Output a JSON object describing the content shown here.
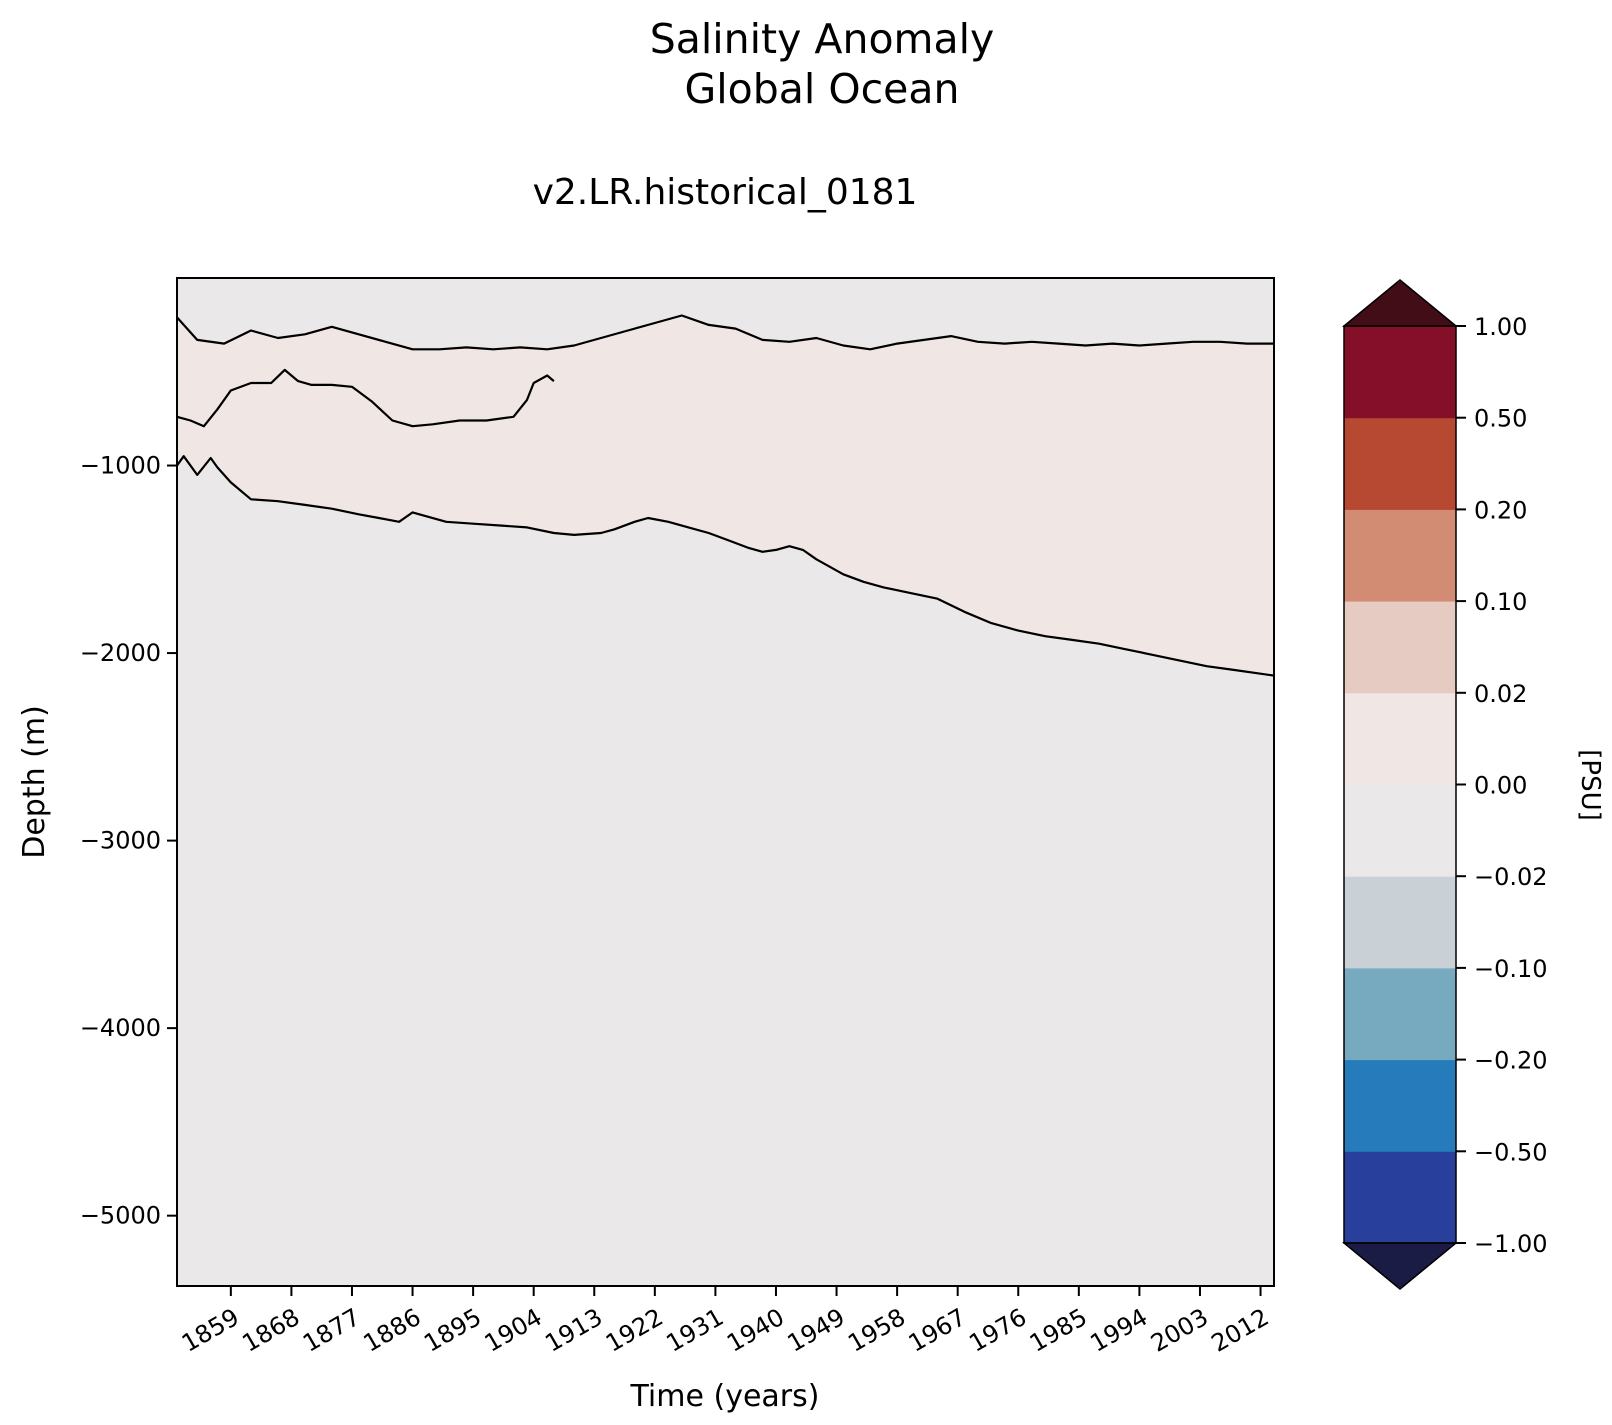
{
  "chart_data": {
    "type": "heatmap",
    "title": "Salinity Anomaly",
    "subtitle": "Global Ocean",
    "panel_title": "v2.LR.historical_0181",
    "xlabel": "Time (years)",
    "ylabel": "Depth (m)",
    "colorbar_label": "[PSU]",
    "x_ticks": [
      1859,
      1868,
      1877,
      1886,
      1895,
      1904,
      1913,
      1922,
      1931,
      1940,
      1949,
      1958,
      1967,
      1976,
      1985,
      1994,
      2003,
      2012
    ],
    "x_tick_labels": [
      "1859",
      "1868",
      "1877",
      "1886",
      "1895",
      "1904",
      "1913",
      "1922",
      "1931",
      "1940",
      "1949",
      "1958",
      "1967",
      "1976",
      "1985",
      "1994",
      "2003",
      "2012"
    ],
    "xlim": [
      1851,
      2014
    ],
    "y_ticks": [
      -1000,
      -2000,
      -3000,
      -4000,
      -5000
    ],
    "y_tick_labels": [
      "−1000",
      "−2000",
      "−3000",
      "−4000",
      "−5000"
    ],
    "ylim": [
      -5375,
      0
    ],
    "levels": [
      -1.0,
      -0.5,
      -0.2,
      -0.1,
      -0.02,
      0.0,
      0.02,
      0.1,
      0.2,
      0.5,
      1.0
    ],
    "level_labels": [
      "−1.00",
      "−0.50",
      "−0.20",
      "−0.10",
      "−0.02",
      "0.00",
      "0.02",
      "0.10",
      "0.20",
      "0.50",
      "1.00"
    ],
    "band_colors": [
      "#283f9c",
      "#267bbb",
      "#77a9bf",
      "#c9d1d7",
      "#eae8e9",
      "#f0e6e4",
      "#e6cbc3",
      "#d18c73",
      "#b74831",
      "#850f28"
    ],
    "extend_low_color": "#1b1c45",
    "extend_high_color": "#420d16",
    "background_color": "#eae8e9",
    "contours": {
      "zero_line_deep": [
        [
          1851,
          -1000
        ],
        [
          1852,
          -950
        ],
        [
          1854,
          -1050
        ],
        [
          1856,
          -960
        ],
        [
          1857,
          -1010
        ],
        [
          1859,
          -1090
        ],
        [
          1862,
          -1180
        ],
        [
          1866,
          -1190
        ],
        [
          1870,
          -1210
        ],
        [
          1874,
          -1230
        ],
        [
          1878,
          -1260
        ],
        [
          1881,
          -1280
        ],
        [
          1884,
          -1300
        ],
        [
          1886,
          -1250
        ],
        [
          1888,
          -1270
        ],
        [
          1891,
          -1300
        ],
        [
          1895,
          -1310
        ],
        [
          1899,
          -1320
        ],
        [
          1903,
          -1330
        ],
        [
          1907,
          -1360
        ],
        [
          1910,
          -1370
        ],
        [
          1914,
          -1360
        ],
        [
          1916,
          -1340
        ],
        [
          1919,
          -1300
        ],
        [
          1921,
          -1280
        ],
        [
          1924,
          -1300
        ],
        [
          1927,
          -1330
        ],
        [
          1930,
          -1360
        ],
        [
          1933,
          -1400
        ],
        [
          1936,
          -1440
        ],
        [
          1938,
          -1460
        ],
        [
          1940,
          -1450
        ],
        [
          1942,
          -1430
        ],
        [
          1944,
          -1450
        ],
        [
          1946,
          -1500
        ],
        [
          1950,
          -1580
        ],
        [
          1953,
          -1620
        ],
        [
          1956,
          -1650
        ],
        [
          1960,
          -1680
        ],
        [
          1964,
          -1710
        ],
        [
          1968,
          -1780
        ],
        [
          1972,
          -1840
        ],
        [
          1976,
          -1880
        ],
        [
          1980,
          -1910
        ],
        [
          1984,
          -1930
        ],
        [
          1988,
          -1950
        ],
        [
          1992,
          -1980
        ],
        [
          1996,
          -2010
        ],
        [
          2000,
          -2040
        ],
        [
          2004,
          -2070
        ],
        [
          2008,
          -2090
        ],
        [
          2012,
          -2110
        ],
        [
          2014,
          -2120
        ]
      ],
      "positive_lens": [
        [
          1851,
          -740
        ],
        [
          1853,
          -760
        ],
        [
          1855,
          -790
        ],
        [
          1857,
          -700
        ],
        [
          1859,
          -600
        ],
        [
          1862,
          -560
        ],
        [
          1865,
          -560
        ],
        [
          1867,
          -490
        ],
        [
          1869,
          -550
        ],
        [
          1871,
          -570
        ],
        [
          1874,
          -570
        ],
        [
          1877,
          -580
        ],
        [
          1880,
          -660
        ],
        [
          1883,
          -760
        ],
        [
          1886,
          -790
        ],
        [
          1889,
          -780
        ],
        [
          1893,
          -760
        ],
        [
          1897,
          -760
        ],
        [
          1901,
          -740
        ],
        [
          1903,
          -650
        ],
        [
          1904,
          -560
        ],
        [
          1906,
          -520
        ],
        [
          1907,
          -550
        ]
      ],
      "near_surface": [
        [
          1851,
          -210
        ],
        [
          1854,
          -330
        ],
        [
          1858,
          -350
        ],
        [
          1862,
          -280
        ],
        [
          1866,
          -320
        ],
        [
          1870,
          -300
        ],
        [
          1874,
          -260
        ],
        [
          1878,
          -300
        ],
        [
          1882,
          -340
        ],
        [
          1886,
          -380
        ],
        [
          1890,
          -380
        ],
        [
          1894,
          -370
        ],
        [
          1898,
          -380
        ],
        [
          1902,
          -370
        ],
        [
          1906,
          -380
        ],
        [
          1910,
          -360
        ],
        [
          1914,
          -320
        ],
        [
          1918,
          -280
        ],
        [
          1922,
          -240
        ],
        [
          1926,
          -200
        ],
        [
          1930,
          -250
        ],
        [
          1934,
          -270
        ],
        [
          1938,
          -330
        ],
        [
          1942,
          -340
        ],
        [
          1946,
          -320
        ],
        [
          1950,
          -360
        ],
        [
          1954,
          -380
        ],
        [
          1958,
          -350
        ],
        [
          1962,
          -330
        ],
        [
          1966,
          -310
        ],
        [
          1970,
          -340
        ],
        [
          1974,
          -350
        ],
        [
          1978,
          -340
        ],
        [
          1982,
          -350
        ],
        [
          1986,
          -360
        ],
        [
          1990,
          -350
        ],
        [
          1994,
          -360
        ],
        [
          1998,
          -350
        ],
        [
          2002,
          -340
        ],
        [
          2006,
          -340
        ],
        [
          2010,
          -350
        ],
        [
          2014,
          -350
        ]
      ]
    }
  }
}
